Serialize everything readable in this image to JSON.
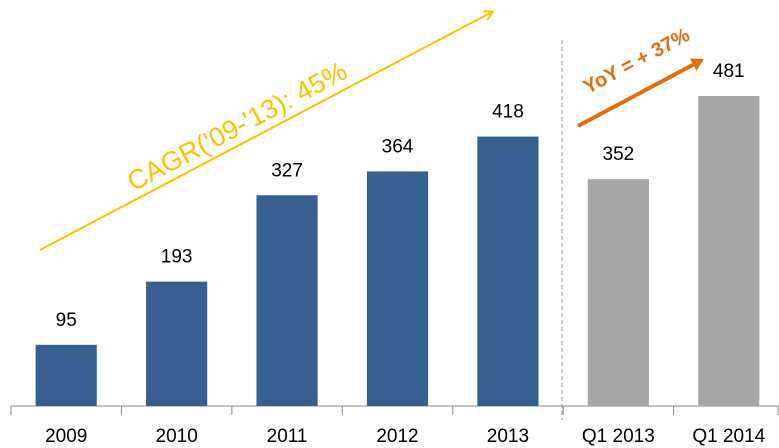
{
  "chart_data": {
    "type": "bar",
    "categories": [
      "2009",
      "2010",
      "2011",
      "2012",
      "2013",
      "Q1 2013",
      "Q1 2014"
    ],
    "values": [
      95,
      193,
      327,
      364,
      418,
      352,
      481
    ],
    "colors": [
      "#375f8f",
      "#375f8f",
      "#375f8f",
      "#375f8f",
      "#375f8f",
      "#a6a6a6",
      "#a6a6a6"
    ],
    "ylim": [
      0,
      630
    ],
    "annotations": [
      {
        "text": "CAGR('09-'13): 45%",
        "color": "#ffc000"
      },
      {
        "text": "YoY = + 37%",
        "color": "#e46c0a"
      }
    ]
  }
}
